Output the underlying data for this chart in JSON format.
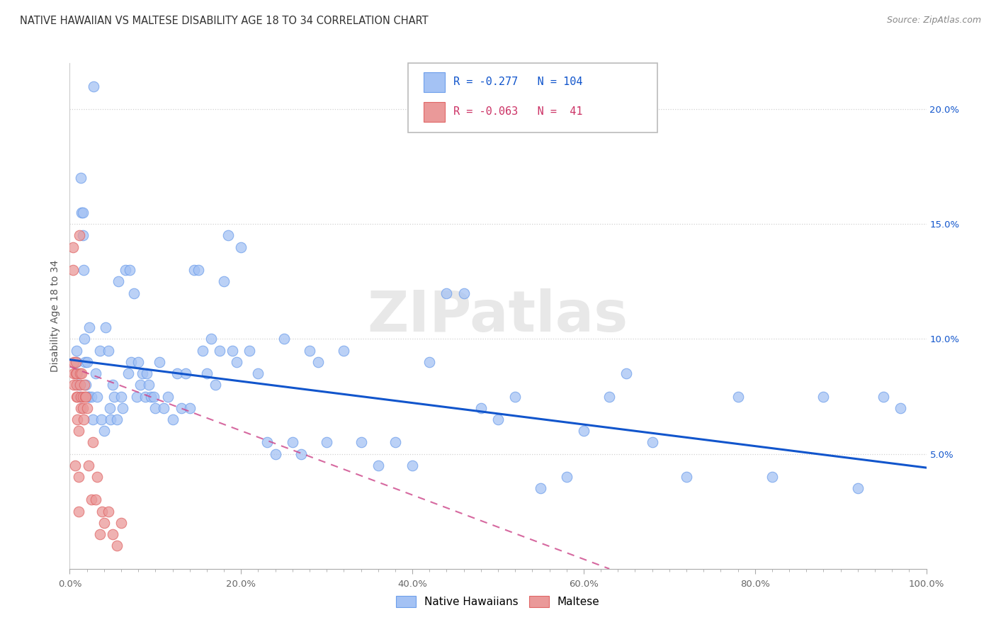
{
  "title": "NATIVE HAWAIIAN VS MALTESE DISABILITY AGE 18 TO 34 CORRELATION CHART",
  "source": "Source: ZipAtlas.com",
  "ylabel": "Disability Age 18 to 34",
  "xlim": [
    0,
    1.0
  ],
  "ylim": [
    0,
    0.22
  ],
  "xtick_labels": [
    "0.0%",
    "",
    "",
    "",
    "",
    "",
    "",
    "",
    "",
    "",
    "20.0%",
    "",
    "",
    "",
    "",
    "",
    "",
    "",
    "",
    "",
    "40.0%",
    "",
    "",
    "",
    "",
    "",
    "",
    "",
    "",
    "",
    "60.0%",
    "",
    "",
    "",
    "",
    "",
    "",
    "",
    "",
    "",
    "80.0%",
    "",
    "",
    "",
    "",
    "",
    "",
    "",
    "",
    "",
    "100.0%"
  ],
  "xtick_vals_major": [
    0,
    0.2,
    0.4,
    0.6,
    0.8,
    1.0
  ],
  "ytick_vals": [
    0.05,
    0.1,
    0.15,
    0.2
  ],
  "ytick_labels": [
    "5.0%",
    "10.0%",
    "15.0%",
    "20.0%"
  ],
  "color_nh": "#a4c2f4",
  "color_maltese": "#ea9999",
  "color_nh_edge": "#6d9eeb",
  "color_maltese_edge": "#e06666",
  "color_line_nh": "#1155cc",
  "color_line_maltese": "#cc4488",
  "watermark_color": "#e0e0e0",
  "legend_box_color": "#f3f3f3",
  "legend_border_color": "#aaaaaa",
  "nh_x": [
    0.008,
    0.008,
    0.009,
    0.01,
    0.012,
    0.013,
    0.014,
    0.015,
    0.015,
    0.016,
    0.017,
    0.018,
    0.019,
    0.02,
    0.022,
    0.022,
    0.023,
    0.025,
    0.027,
    0.028,
    0.03,
    0.032,
    0.035,
    0.037,
    0.04,
    0.042,
    0.045,
    0.047,
    0.048,
    0.05,
    0.052,
    0.055,
    0.057,
    0.06,
    0.062,
    0.065,
    0.068,
    0.07,
    0.072,
    0.075,
    0.078,
    0.08,
    0.082,
    0.085,
    0.088,
    0.09,
    0.092,
    0.095,
    0.098,
    0.1,
    0.105,
    0.11,
    0.115,
    0.12,
    0.125,
    0.13,
    0.135,
    0.14,
    0.145,
    0.15,
    0.155,
    0.16,
    0.165,
    0.17,
    0.175,
    0.18,
    0.185,
    0.19,
    0.195,
    0.2,
    0.21,
    0.22,
    0.23,
    0.24,
    0.25,
    0.26,
    0.27,
    0.28,
    0.29,
    0.3,
    0.32,
    0.34,
    0.36,
    0.38,
    0.4,
    0.42,
    0.44,
    0.46,
    0.48,
    0.5,
    0.52,
    0.55,
    0.58,
    0.6,
    0.63,
    0.65,
    0.68,
    0.72,
    0.78,
    0.82,
    0.88,
    0.92,
    0.95,
    0.97
  ],
  "nh_y": [
    0.09,
    0.095,
    0.085,
    0.08,
    0.075,
    0.17,
    0.155,
    0.155,
    0.145,
    0.13,
    0.1,
    0.09,
    0.08,
    0.09,
    0.075,
    0.075,
    0.105,
    0.075,
    0.065,
    0.21,
    0.085,
    0.075,
    0.095,
    0.065,
    0.06,
    0.105,
    0.095,
    0.07,
    0.065,
    0.08,
    0.075,
    0.065,
    0.125,
    0.075,
    0.07,
    0.13,
    0.085,
    0.13,
    0.09,
    0.12,
    0.075,
    0.09,
    0.08,
    0.085,
    0.075,
    0.085,
    0.08,
    0.075,
    0.075,
    0.07,
    0.09,
    0.07,
    0.075,
    0.065,
    0.085,
    0.07,
    0.085,
    0.07,
    0.13,
    0.13,
    0.095,
    0.085,
    0.1,
    0.08,
    0.095,
    0.125,
    0.145,
    0.095,
    0.09,
    0.14,
    0.095,
    0.085,
    0.055,
    0.05,
    0.1,
    0.055,
    0.05,
    0.095,
    0.09,
    0.055,
    0.095,
    0.055,
    0.045,
    0.055,
    0.045,
    0.09,
    0.12,
    0.12,
    0.07,
    0.065,
    0.075,
    0.035,
    0.04,
    0.06,
    0.075,
    0.085,
    0.055,
    0.04,
    0.075,
    0.04,
    0.075,
    0.035,
    0.075,
    0.07
  ],
  "maltese_x": [
    0.004,
    0.004,
    0.005,
    0.005,
    0.005,
    0.006,
    0.007,
    0.007,
    0.008,
    0.008,
    0.008,
    0.009,
    0.009,
    0.01,
    0.01,
    0.01,
    0.011,
    0.012,
    0.012,
    0.013,
    0.013,
    0.014,
    0.015,
    0.015,
    0.016,
    0.017,
    0.018,
    0.019,
    0.02,
    0.022,
    0.025,
    0.027,
    0.03,
    0.032,
    0.035,
    0.038,
    0.04,
    0.045,
    0.05,
    0.055,
    0.06
  ],
  "maltese_y": [
    0.14,
    0.13,
    0.09,
    0.085,
    0.08,
    0.045,
    0.09,
    0.085,
    0.085,
    0.08,
    0.075,
    0.075,
    0.065,
    0.06,
    0.04,
    0.025,
    0.145,
    0.085,
    0.08,
    0.075,
    0.07,
    0.085,
    0.075,
    0.07,
    0.065,
    0.08,
    0.075,
    0.075,
    0.07,
    0.045,
    0.03,
    0.055,
    0.03,
    0.04,
    0.015,
    0.025,
    0.02,
    0.025,
    0.015,
    0.01,
    0.02
  ],
  "nh_line_x0": 0.0,
  "nh_line_x1": 1.0,
  "nh_line_y0": 0.091,
  "nh_line_y1": 0.044,
  "maltese_line_x0": 0.0,
  "maltese_line_x1": 0.63,
  "maltese_line_y0": 0.088,
  "maltese_line_y1": 0.0,
  "title_fontsize": 10.5,
  "source_fontsize": 9,
  "axis_label_fontsize": 10,
  "tick_fontsize": 9.5,
  "legend_fontsize": 11
}
